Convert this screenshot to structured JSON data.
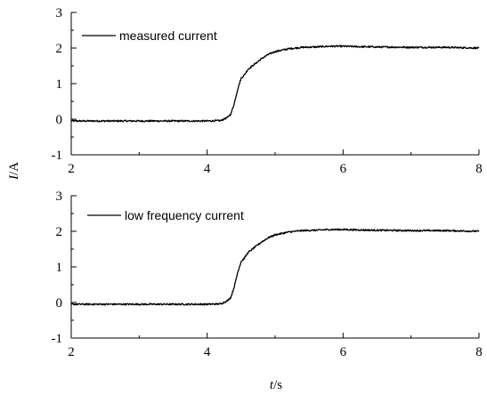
{
  "chart_data": [
    {
      "type": "line",
      "xlim": [
        2,
        8
      ],
      "ylim": [
        -1,
        3
      ],
      "x_ticks": [
        "2",
        "4",
        "6",
        "8"
      ],
      "y_ticks": [
        "-1",
        "0",
        "1",
        "2",
        "3"
      ],
      "legend": "top-left",
      "grid": false,
      "series": [
        {
          "name": "measured current",
          "color": "#000000",
          "x": [
            2.0,
            2.5,
            3.0,
            3.5,
            4.0,
            4.2,
            4.3,
            4.35,
            4.4,
            4.45,
            4.5,
            4.55,
            4.6,
            4.7,
            4.8,
            4.9,
            5.0,
            5.2,
            5.4,
            5.6,
            5.8,
            6.0,
            6.2,
            6.5,
            7.0,
            7.5,
            8.0
          ],
          "y": [
            -0.05,
            -0.05,
            -0.05,
            -0.05,
            -0.05,
            -0.04,
            0.05,
            0.15,
            0.45,
            0.85,
            1.15,
            1.25,
            1.4,
            1.55,
            1.7,
            1.82,
            1.9,
            1.98,
            2.02,
            2.03,
            2.05,
            2.05,
            2.04,
            2.03,
            2.02,
            2.02,
            2.0
          ]
        }
      ]
    },
    {
      "type": "line",
      "xlim": [
        2,
        8
      ],
      "ylim": [
        -1,
        3
      ],
      "x_ticks": [
        "2",
        "4",
        "6",
        "8"
      ],
      "y_ticks": [
        "-1",
        "0",
        "1",
        "2",
        "3"
      ],
      "legend": "top-left",
      "grid": false,
      "series": [
        {
          "name": "low frequency current",
          "color": "#000000",
          "x": [
            2.0,
            2.5,
            3.0,
            3.5,
            4.0,
            4.2,
            4.3,
            4.35,
            4.4,
            4.45,
            4.5,
            4.55,
            4.6,
            4.7,
            4.8,
            4.9,
            5.0,
            5.2,
            5.4,
            5.6,
            5.8,
            6.0,
            6.2,
            6.5,
            7.0,
            7.5,
            8.0
          ],
          "y": [
            -0.05,
            -0.05,
            -0.05,
            -0.05,
            -0.05,
            -0.04,
            0.05,
            0.15,
            0.45,
            0.85,
            1.15,
            1.25,
            1.4,
            1.55,
            1.7,
            1.82,
            1.9,
            1.98,
            2.02,
            2.03,
            2.05,
            2.05,
            2.04,
            2.03,
            2.02,
            2.02,
            2.0
          ]
        }
      ]
    }
  ],
  "shared_axes": {
    "ylabel_italic": "I",
    "ylabel_unit": "/A",
    "xlabel_italic": "t",
    "xlabel_unit": "/s"
  }
}
